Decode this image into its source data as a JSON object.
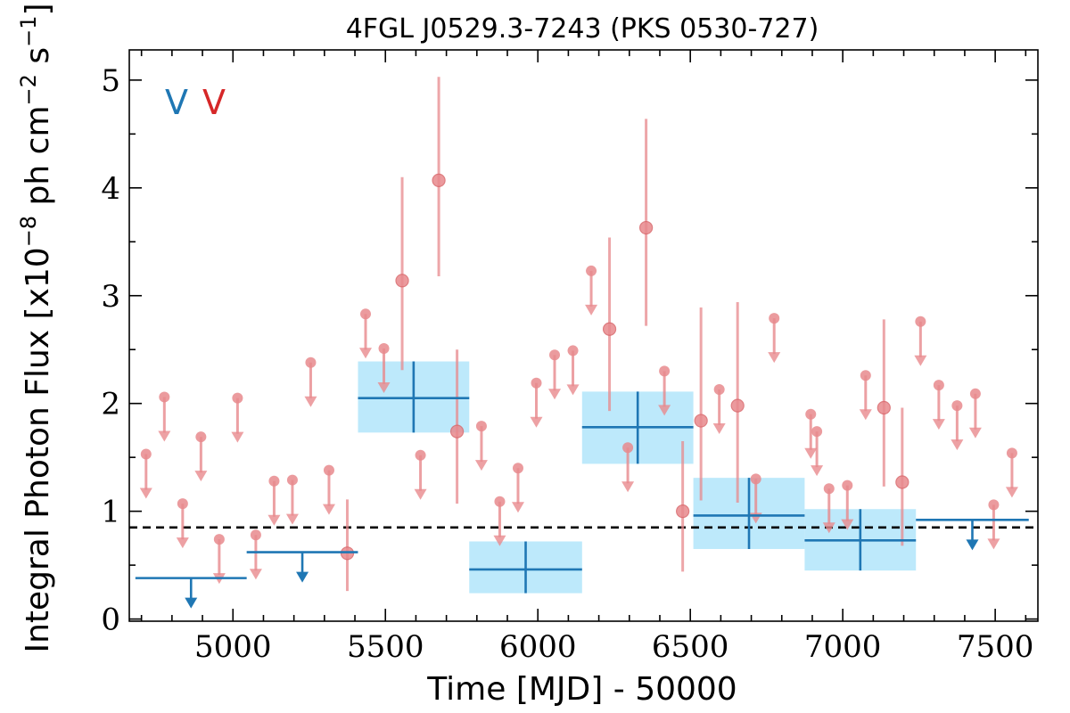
{
  "chart_data": {
    "type": "scatter",
    "title": "4FGL J0529.3-7243 (PKS 0530-727)",
    "xlabel": "Time [MJD] - 50000",
    "ylabel_main": "Integral Photon Flux [x10",
    "ylabel_exp1": "−8",
    "ylabel_mid": " ph cm",
    "ylabel_exp2": "−2",
    "ylabel_mid2": " s",
    "ylabel_exp3": "−1",
    "ylabel_end": "]",
    "xlim": [
      4660,
      7640
    ],
    "ylim": [
      -0.02,
      5.28
    ],
    "xticks": [
      5000,
      5500,
      6000,
      6500,
      7000,
      7500
    ],
    "yticks": [
      0,
      1,
      2,
      3,
      4,
      5
    ],
    "grid": false,
    "legend_markers": [
      {
        "text": "V",
        "color": "#1f77b4"
      },
      {
        "text": "V",
        "color": "#d62728"
      }
    ],
    "reference_line": {
      "y": 0.85,
      "style": "dashed",
      "color": "#000000"
    },
    "colors": {
      "monthly": "#e8898d",
      "yearly": "#1f77b4",
      "yearly_band": "#bde9fb"
    },
    "series": [
      {
        "kind": "monthly_upper_limits",
        "points": [
          {
            "x": 4715,
            "y": 1.53
          },
          {
            "x": 4775,
            "y": 2.06
          },
          {
            "x": 4835,
            "y": 1.07
          },
          {
            "x": 4895,
            "y": 1.69
          },
          {
            "x": 4955,
            "y": 0.74
          },
          {
            "x": 5015,
            "y": 2.05
          },
          {
            "x": 5075,
            "y": 0.78
          },
          {
            "x": 5135,
            "y": 1.28
          },
          {
            "x": 5195,
            "y": 1.29
          },
          {
            "x": 5255,
            "y": 2.38
          },
          {
            "x": 5315,
            "y": 1.38
          },
          {
            "x": 5435,
            "y": 2.83
          },
          {
            "x": 5495,
            "y": 2.51
          },
          {
            "x": 5615,
            "y": 1.52
          },
          {
            "x": 5815,
            "y": 1.79
          },
          {
            "x": 5875,
            "y": 1.09
          },
          {
            "x": 5935,
            "y": 1.4
          },
          {
            "x": 5995,
            "y": 2.19
          },
          {
            "x": 6055,
            "y": 2.45
          },
          {
            "x": 6115,
            "y": 2.49
          },
          {
            "x": 6175,
            "y": 3.23
          },
          {
            "x": 6295,
            "y": 1.59
          },
          {
            "x": 6415,
            "y": 2.3
          },
          {
            "x": 6595,
            "y": 2.13
          },
          {
            "x": 6715,
            "y": 1.3
          },
          {
            "x": 6775,
            "y": 2.79
          },
          {
            "x": 6895,
            "y": 1.9
          },
          {
            "x": 6915,
            "y": 1.74
          },
          {
            "x": 6955,
            "y": 1.21
          },
          {
            "x": 7015,
            "y": 1.24
          },
          {
            "x": 7075,
            "y": 2.26
          },
          {
            "x": 7255,
            "y": 2.76
          },
          {
            "x": 7315,
            "y": 2.17
          },
          {
            "x": 7375,
            "y": 1.98
          },
          {
            "x": 7435,
            "y": 2.09
          },
          {
            "x": 7495,
            "y": 1.06
          },
          {
            "x": 7555,
            "y": 1.54
          }
        ]
      },
      {
        "kind": "monthly_detections",
        "points": [
          {
            "x": 5375,
            "y": 0.61,
            "ylo": 0.26,
            "yhi": 1.11
          },
          {
            "x": 5555,
            "y": 3.14,
            "ylo": 2.31,
            "yhi": 4.1
          },
          {
            "x": 5675,
            "y": 4.07,
            "ylo": 3.18,
            "yhi": 5.03
          },
          {
            "x": 5735,
            "y": 1.74,
            "ylo": 1.07,
            "yhi": 2.5
          },
          {
            "x": 6235,
            "y": 2.69,
            "ylo": 1.93,
            "yhi": 3.54
          },
          {
            "x": 6355,
            "y": 3.63,
            "ylo": 2.72,
            "yhi": 4.64
          },
          {
            "x": 6475,
            "y": 1.0,
            "ylo": 0.44,
            "yhi": 1.65
          },
          {
            "x": 6535,
            "y": 1.84,
            "ylo": 1.1,
            "yhi": 2.89
          },
          {
            "x": 6655,
            "y": 1.98,
            "ylo": 1.08,
            "yhi": 2.94
          },
          {
            "x": 7135,
            "y": 1.96,
            "ylo": 1.23,
            "yhi": 2.78
          },
          {
            "x": 7195,
            "y": 1.27,
            "ylo": 0.68,
            "yhi": 1.96
          }
        ]
      },
      {
        "kind": "yearly_upper_limits",
        "points": [
          {
            "x0": 4680,
            "x1": 5045,
            "y": 0.38
          },
          {
            "x0": 5045,
            "x1": 5410,
            "y": 0.62
          },
          {
            "x0": 7240,
            "x1": 7610,
            "y": 0.92
          }
        ]
      },
      {
        "kind": "yearly_detections",
        "points": [
          {
            "x0": 5410,
            "x1": 5775,
            "y": 2.05,
            "ylo": 1.73,
            "yhi": 2.39
          },
          {
            "x0": 5775,
            "x1": 6145,
            "y": 0.46,
            "ylo": 0.24,
            "yhi": 0.72
          },
          {
            "x0": 6145,
            "x1": 6510,
            "y": 1.78,
            "ylo": 1.44,
            "yhi": 2.11
          },
          {
            "x0": 6510,
            "x1": 6875,
            "y": 0.96,
            "ylo": 0.65,
            "yhi": 1.31
          },
          {
            "x0": 6875,
            "x1": 7240,
            "y": 0.73,
            "ylo": 0.45,
            "yhi": 1.02
          }
        ]
      }
    ]
  }
}
